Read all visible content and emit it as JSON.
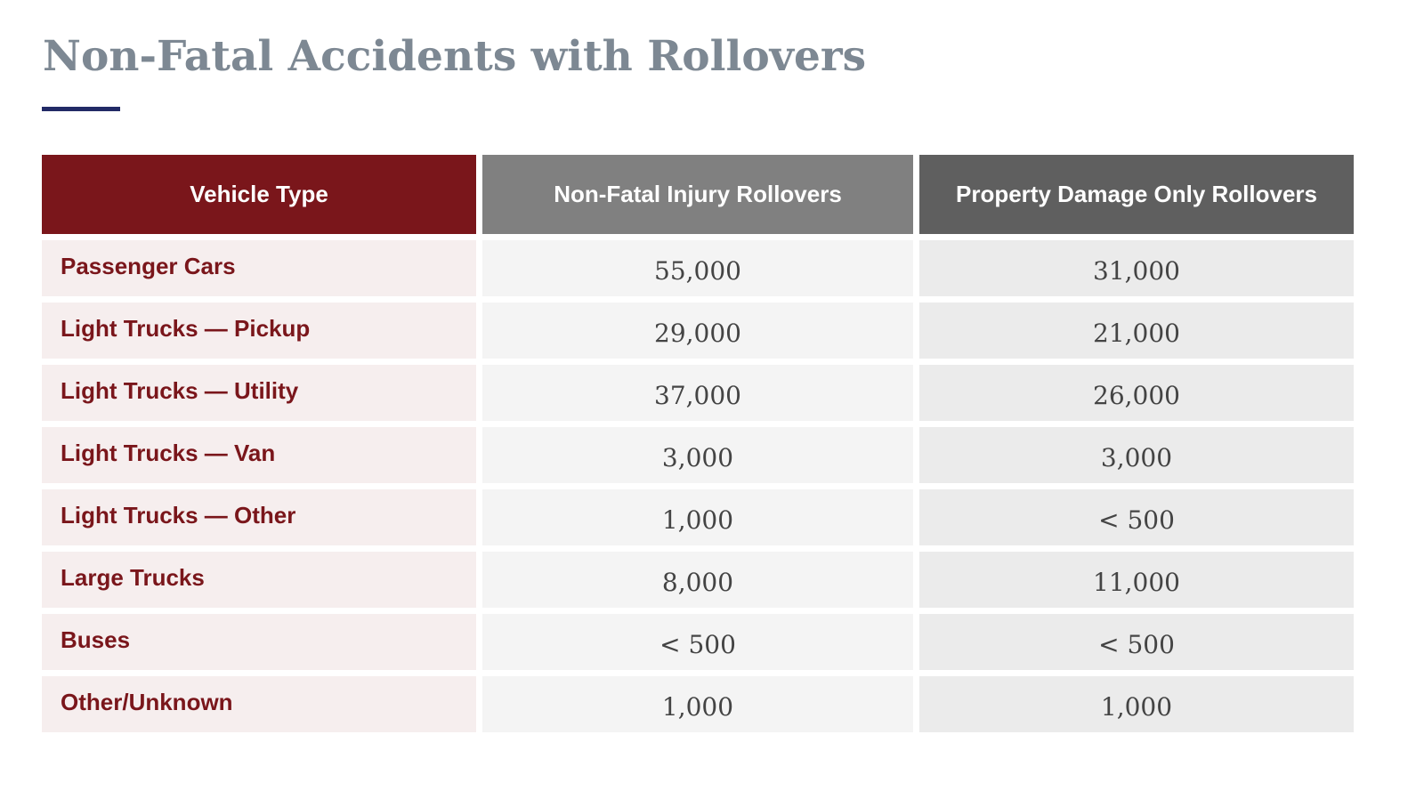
{
  "title": "Non-Fatal Accidents with Rollovers",
  "colors": {
    "accent_rule": "#222a66",
    "header_vehicle": "#7a161b",
    "header_injury": "#808080",
    "header_property": "#5f5f5f",
    "row_label_text": "#7a161b"
  },
  "table": {
    "headers": [
      "Vehicle Type",
      "Non-Fatal Injury Rollovers",
      "Property Damage Only Rollovers"
    ],
    "rows": [
      [
        "Passenger Cars",
        "55,000",
        "31,000"
      ],
      [
        "Light Trucks — Pickup",
        "29,000",
        "21,000"
      ],
      [
        "Light Trucks — Utility",
        "37,000",
        "26,000"
      ],
      [
        "Light Trucks — Van",
        "3,000",
        "3,000"
      ],
      [
        "Light Trucks — Other",
        "1,000",
        "< 500"
      ],
      [
        "Large Trucks",
        "8,000",
        "11,000"
      ],
      [
        "Buses",
        "< 500",
        "< 500"
      ],
      [
        "Other/Unknown",
        "1,000",
        "1,000"
      ]
    ]
  }
}
